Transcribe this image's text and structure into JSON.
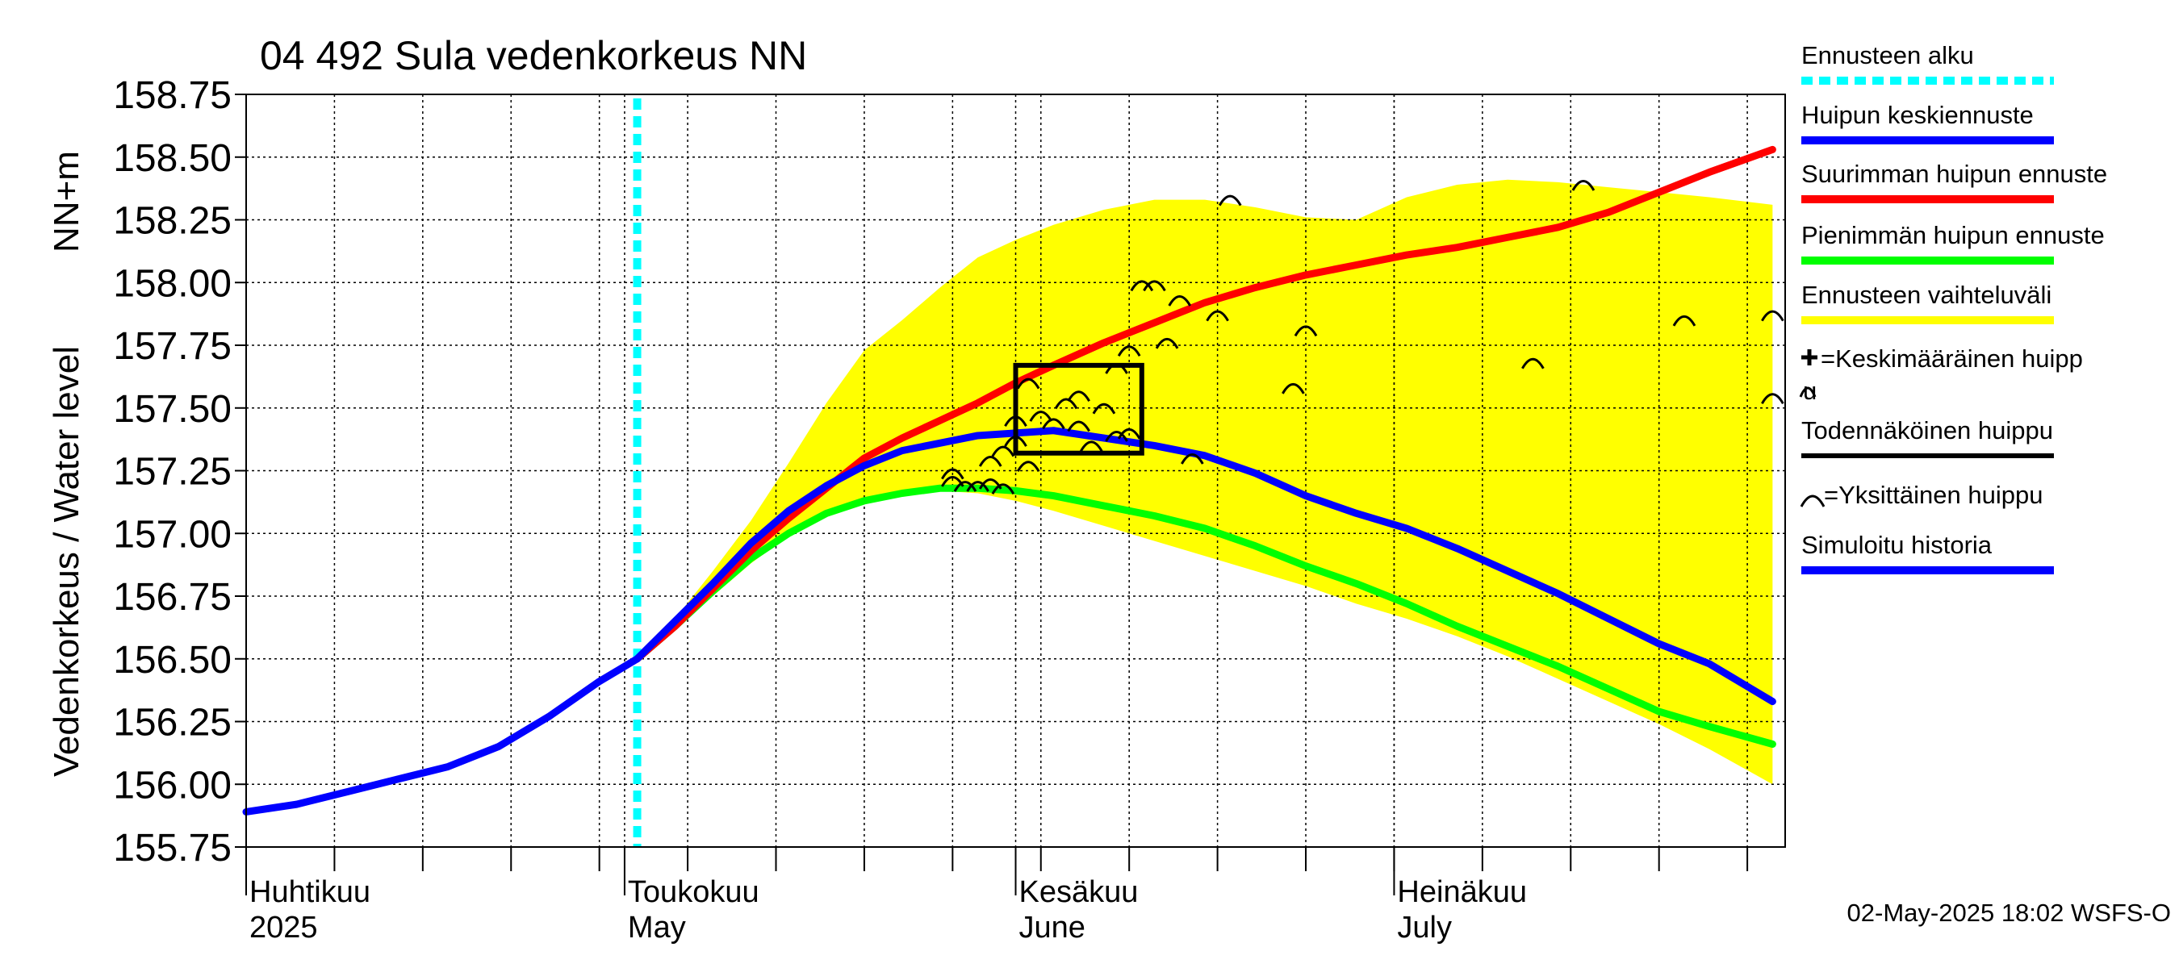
{
  "chart_data": {
    "type": "line",
    "title": "04 492 Sula vedenkorkeus NN",
    "ylabel_main": "Vedenkorkeus / Water level",
    "ylabel_unit": "NN+m",
    "ylim": [
      155.75,
      158.75
    ],
    "yticks": [
      "155.75",
      "156.00",
      "156.25",
      "156.50",
      "156.75",
      "157.00",
      "157.25",
      "157.50",
      "157.75",
      "158.00",
      "158.25",
      "158.50",
      "158.75"
    ],
    "x_start": "2025-04-01",
    "x_end": "2025-07-31",
    "forecast_start": "2025-05-02",
    "grid": true,
    "month_labels": [
      {
        "date": "2025-04-01",
        "fi": "Huhtikuu",
        "en": "2025"
      },
      {
        "date": "2025-05-01",
        "fi": "Toukokuu",
        "en": "May"
      },
      {
        "date": "2025-06-01",
        "fi": "Kesäkuu",
        "en": "June"
      },
      {
        "date": "2025-07-01",
        "fi": "Heinäkuu",
        "en": "July"
      }
    ],
    "timestamp": "02-May-2025 18:02 WSFS-O",
    "legend": [
      {
        "label": "Ennusteen alku",
        "color": "#00ffff",
        "style": "dashed"
      },
      {
        "label": "Huipun keskiennuste",
        "color": "#0000ff",
        "style": "solid"
      },
      {
        "label": "Suurimman huipun ennuste",
        "color": "#ff0000",
        "style": "solid"
      },
      {
        "label": "Pienimmän huipun ennuste",
        "color": "#00ff00",
        "style": "solid"
      },
      {
        "label": "Ennusteen vaihteluväli",
        "color": "#ffff00",
        "style": "solid"
      },
      {
        "label": "=Keskimääräinen huipp",
        "label2": "u",
        "color": "#000000",
        "style": "plus"
      },
      {
        "label": "Todennäköinen huippu",
        "color": "#000000",
        "style": "solid"
      },
      {
        "label": "=Yksittäinen huippu",
        "color": "#000000",
        "style": "arc"
      },
      {
        "label": "Simuloitu historia",
        "color": "#0000ff",
        "style": "solid"
      }
    ],
    "series": [
      {
        "name": "Simuloitu historia",
        "color": "#0000ff",
        "x": [
          "2025-04-01",
          "2025-04-05",
          "2025-04-09",
          "2025-04-13",
          "2025-04-17",
          "2025-04-21",
          "2025-04-25",
          "2025-04-29",
          "2025-05-02"
        ],
        "y": [
          155.89,
          155.92,
          155.97,
          156.02,
          156.07,
          156.15,
          156.27,
          156.41,
          156.5
        ]
      },
      {
        "name": "Huipun keskiennuste",
        "color": "#0000ff",
        "x": [
          "2025-05-02",
          "2025-05-05",
          "2025-05-08",
          "2025-05-11",
          "2025-05-14",
          "2025-05-17",
          "2025-05-20",
          "2025-05-23",
          "2025-05-26",
          "2025-05-29",
          "2025-06-01",
          "2025-06-04",
          "2025-06-08",
          "2025-06-12",
          "2025-06-16",
          "2025-06-20",
          "2025-06-24",
          "2025-06-28",
          "2025-07-02",
          "2025-07-06",
          "2025-07-10",
          "2025-07-14",
          "2025-07-18",
          "2025-07-22",
          "2025-07-26",
          "2025-07-31"
        ],
        "y": [
          156.5,
          156.65,
          156.8,
          156.96,
          157.09,
          157.19,
          157.27,
          157.33,
          157.36,
          157.39,
          157.4,
          157.41,
          157.38,
          157.35,
          157.31,
          157.24,
          157.15,
          157.08,
          157.02,
          156.94,
          156.85,
          156.76,
          156.66,
          156.56,
          156.48,
          156.33
        ]
      },
      {
        "name": "Suurimman huipun ennuste",
        "color": "#ff0000",
        "x": [
          "2025-05-02",
          "2025-05-05",
          "2025-05-08",
          "2025-05-11",
          "2025-05-14",
          "2025-05-17",
          "2025-05-20",
          "2025-05-23",
          "2025-05-26",
          "2025-05-29",
          "2025-06-01",
          "2025-06-04",
          "2025-06-08",
          "2025-06-12",
          "2025-06-16",
          "2025-06-20",
          "2025-06-24",
          "2025-06-28",
          "2025-07-02",
          "2025-07-06",
          "2025-07-10",
          "2025-07-14",
          "2025-07-18",
          "2025-07-22",
          "2025-07-26",
          "2025-07-31"
        ],
        "y": [
          156.5,
          156.63,
          156.78,
          156.93,
          157.06,
          157.18,
          157.3,
          157.38,
          157.45,
          157.52,
          157.6,
          157.67,
          157.76,
          157.84,
          157.92,
          157.98,
          158.03,
          158.07,
          158.11,
          158.14,
          158.18,
          158.22,
          158.28,
          158.36,
          158.44,
          158.53
        ]
      },
      {
        "name": "Pienimmän huipun ennuste",
        "color": "#00ff00",
        "x": [
          "2025-05-02",
          "2025-05-05",
          "2025-05-08",
          "2025-05-11",
          "2025-05-14",
          "2025-05-17",
          "2025-05-20",
          "2025-05-23",
          "2025-05-26",
          "2025-05-29",
          "2025-06-01",
          "2025-06-04",
          "2025-06-08",
          "2025-06-12",
          "2025-06-16",
          "2025-06-20",
          "2025-06-24",
          "2025-06-28",
          "2025-07-02",
          "2025-07-06",
          "2025-07-10",
          "2025-07-14",
          "2025-07-18",
          "2025-07-22",
          "2025-07-26",
          "2025-07-31"
        ],
        "y": [
          156.5,
          156.63,
          156.77,
          156.9,
          157.0,
          157.08,
          157.13,
          157.16,
          157.18,
          157.18,
          157.17,
          157.15,
          157.11,
          157.07,
          157.02,
          156.95,
          156.87,
          156.8,
          156.72,
          156.63,
          156.55,
          156.47,
          156.38,
          156.29,
          156.23,
          156.16
        ]
      }
    ],
    "range_band": {
      "name": "Ennusteen vaihteluväli",
      "color": "#ffff00",
      "x": [
        "2025-05-02",
        "2025-05-05",
        "2025-05-08",
        "2025-05-11",
        "2025-05-14",
        "2025-05-17",
        "2025-05-20",
        "2025-05-23",
        "2025-05-26",
        "2025-05-29",
        "2025-06-01",
        "2025-06-04",
        "2025-06-08",
        "2025-06-12",
        "2025-06-16",
        "2025-06-20",
        "2025-06-24",
        "2025-06-28",
        "2025-07-02",
        "2025-07-06",
        "2025-07-10",
        "2025-07-14",
        "2025-07-18",
        "2025-07-22",
        "2025-07-26",
        "2025-07-31"
      ],
      "upper": [
        156.5,
        156.66,
        156.85,
        157.05,
        157.28,
        157.52,
        157.73,
        157.85,
        157.98,
        158.1,
        158.17,
        158.23,
        158.29,
        158.33,
        158.33,
        158.3,
        158.26,
        158.25,
        158.34,
        158.39,
        158.41,
        158.4,
        158.38,
        158.36,
        158.34,
        158.31
      ],
      "lower": [
        156.5,
        156.62,
        156.75,
        156.88,
        156.99,
        157.08,
        157.13,
        157.16,
        157.17,
        157.16,
        157.13,
        157.09,
        157.03,
        156.97,
        156.91,
        156.85,
        156.79,
        156.72,
        156.66,
        156.59,
        156.51,
        156.42,
        156.33,
        156.24,
        156.14,
        156.0
      ]
    },
    "probable_peak_box": {
      "x0": "2025-06-01",
      "x1": "2025-06-11",
      "y0": 157.32,
      "y1": 157.67
    },
    "individual_peaks": [
      {
        "x": "2025-06-18",
        "y": 158.33
      },
      {
        "x": "2025-07-16",
        "y": 158.39
      },
      {
        "x": "2025-06-11",
        "y": 157.99
      },
      {
        "x": "2025-06-12",
        "y": 157.99
      },
      {
        "x": "2025-06-14",
        "y": 157.93
      },
      {
        "x": "2025-06-17",
        "y": 157.87
      },
      {
        "x": "2025-06-13",
        "y": 157.76
      },
      {
        "x": "2025-06-24",
        "y": 157.81
      },
      {
        "x": "2025-07-24",
        "y": 157.85
      },
      {
        "x": "2025-07-31",
        "y": 157.87
      },
      {
        "x": "2025-06-10",
        "y": 157.73
      },
      {
        "x": "2025-07-12",
        "y": 157.68
      },
      {
        "x": "2025-06-09",
        "y": 157.66
      },
      {
        "x": "2025-06-23",
        "y": 157.58
      },
      {
        "x": "2025-07-31",
        "y": 157.54
      },
      {
        "x": "2025-06-02",
        "y": 157.6
      },
      {
        "x": "2025-06-06",
        "y": 157.55
      },
      {
        "x": "2025-06-05",
        "y": 157.52
      },
      {
        "x": "2025-06-08",
        "y": 157.5
      },
      {
        "x": "2025-06-03",
        "y": 157.47
      },
      {
        "x": "2025-06-04",
        "y": 157.44
      },
      {
        "x": "2025-06-01",
        "y": 157.45
      },
      {
        "x": "2025-06-06",
        "y": 157.43
      },
      {
        "x": "2025-06-09",
        "y": 157.39
      },
      {
        "x": "2025-06-10",
        "y": 157.4
      },
      {
        "x": "2025-06-07",
        "y": 157.35
      },
      {
        "x": "2025-06-01",
        "y": 157.37
      },
      {
        "x": "2025-05-31",
        "y": 157.33
      },
      {
        "x": "2025-06-15",
        "y": 157.3
      },
      {
        "x": "2025-05-30",
        "y": 157.29
      },
      {
        "x": "2025-06-02",
        "y": 157.27
      },
      {
        "x": "2025-05-27",
        "y": 157.24
      },
      {
        "x": "2025-05-27",
        "y": 157.21
      },
      {
        "x": "2025-05-28",
        "y": 157.19
      },
      {
        "x": "2025-05-29",
        "y": 157.19
      },
      {
        "x": "2025-05-30",
        "y": 157.2
      },
      {
        "x": "2025-05-31",
        "y": 157.18
      }
    ]
  }
}
